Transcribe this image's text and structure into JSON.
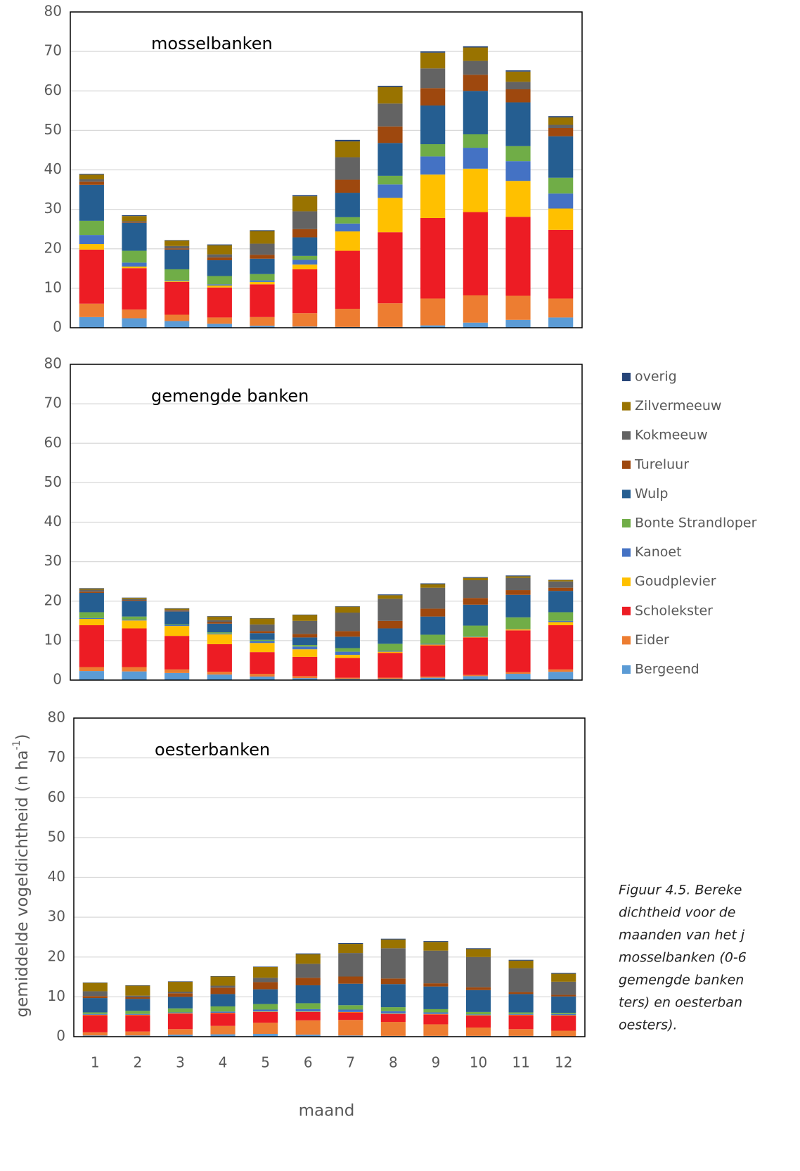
{
  "chart_data": [
    {
      "type": "bar",
      "stacked": true,
      "title": "mosselbanken",
      "ylim": [
        0,
        80
      ],
      "yticks": [
        0,
        10,
        20,
        30,
        40,
        50,
        60,
        70,
        80
      ],
      "grid": true,
      "series": [
        {
          "name": "Bergeend",
          "color": "#5b9bd5",
          "values": [
            2.7,
            2.4,
            1.7,
            1.0,
            0.5,
            0.3,
            0.2,
            0.2,
            0.6,
            1.3,
            2.0,
            2.6
          ]
        },
        {
          "name": "Eider",
          "color": "#ed7d31",
          "values": [
            3.4,
            2.2,
            1.6,
            1.6,
            2.2,
            3.4,
            4.6,
            6.0,
            6.8,
            6.9,
            6.1,
            4.8
          ]
        },
        {
          "name": "Scholekster",
          "color": "#ed1c24",
          "values": [
            13.7,
            10.5,
            8.3,
            7.6,
            8.3,
            11.1,
            14.7,
            18.0,
            20.4,
            21.1,
            20.0,
            17.4
          ]
        },
        {
          "name": "Goudplevier",
          "color": "#ffc000",
          "values": [
            1.4,
            0.4,
            0.2,
            0.5,
            0.6,
            1.2,
            4.9,
            8.7,
            11.0,
            11.0,
            9.1,
            5.4
          ]
        },
        {
          "name": "Kanoet",
          "color": "#4472c4",
          "values": [
            2.3,
            1.0,
            0.2,
            0.3,
            0.4,
            1.2,
            2.0,
            3.4,
            4.6,
            5.3,
            5.0,
            3.8
          ]
        },
        {
          "name": "Bonte Strandloper",
          "color": "#70ad47",
          "values": [
            3.6,
            3.0,
            2.8,
            2.1,
            1.6,
            1.0,
            1.6,
            2.2,
            3.1,
            3.4,
            3.8,
            4.0
          ]
        },
        {
          "name": "Wulp",
          "color": "#255e91",
          "values": [
            9.1,
            7.1,
            5.0,
            4.0,
            3.9,
            4.7,
            6.2,
            8.3,
            9.8,
            11.0,
            11.1,
            10.5
          ]
        },
        {
          "name": "Tureluur",
          "color": "#9e480e",
          "values": [
            0.8,
            0.2,
            0.3,
            0.7,
            1.0,
            2.1,
            3.3,
            4.2,
            4.4,
            4.1,
            3.3,
            2.1
          ]
        },
        {
          "name": "Kokmeeuw",
          "color": "#636363",
          "values": [
            0.6,
            0.2,
            0.6,
            0.8,
            2.8,
            4.5,
            5.7,
            5.8,
            5.0,
            3.5,
            1.9,
            0.8
          ]
        },
        {
          "name": "Zilvermeeuw",
          "color": "#997300",
          "values": [
            1.2,
            1.3,
            1.4,
            2.3,
            3.2,
            3.8,
            4.0,
            4.2,
            4.0,
            3.4,
            2.6,
            1.9
          ]
        },
        {
          "name": "overig",
          "color": "#264478",
          "values": [
            0.2,
            0.2,
            0.1,
            0.2,
            0.2,
            0.3,
            0.4,
            0.3,
            0.3,
            0.3,
            0.3,
            0.3
          ]
        }
      ]
    },
    {
      "type": "bar",
      "stacked": true,
      "title": "gemengde banken",
      "ylim": [
        0,
        80
      ],
      "yticks": [
        0,
        10,
        20,
        30,
        40,
        50,
        60,
        70,
        80
      ],
      "grid": true,
      "series": [
        {
          "name": "Bergeend",
          "color": "#5b9bd5",
          "values": [
            2.3,
            2.2,
            1.8,
            1.4,
            0.9,
            0.5,
            0.3,
            0.3,
            0.6,
            1.0,
            1.6,
            2.1
          ]
        },
        {
          "name": "Eider",
          "color": "#ed7d31",
          "values": [
            1.0,
            1.1,
            0.9,
            0.7,
            0.7,
            0.5,
            0.3,
            0.3,
            0.3,
            0.3,
            0.4,
            0.6
          ]
        },
        {
          "name": "Scholekster",
          "color": "#ed1c24",
          "values": [
            10.6,
            9.8,
            8.5,
            7.0,
            5.5,
            4.9,
            5.0,
            6.3,
            7.9,
            9.5,
            10.6,
            11.2
          ]
        },
        {
          "name": "Goudplevier",
          "color": "#ffc000",
          "values": [
            1.6,
            2.0,
            2.5,
            2.5,
            2.3,
            1.9,
            0.8,
            0.3,
            0.2,
            0.1,
            0.3,
            0.8
          ]
        },
        {
          "name": "Kanoet",
          "color": "#4472c4",
          "values": [
            0.2,
            0.2,
            0.2,
            0.2,
            0.5,
            0.7,
            0.8,
            0.2,
            0.2,
            0.1,
            0.1,
            0.3
          ]
        },
        {
          "name": "Bonte Strandloper",
          "color": "#70ad47",
          "values": [
            1.5,
            0.8,
            0.2,
            0.3,
            0.3,
            0.4,
            0.9,
            1.8,
            2.3,
            2.8,
            2.9,
            2.2
          ]
        },
        {
          "name": "Wulp",
          "color": "#255e91",
          "values": [
            4.9,
            4.0,
            3.3,
            2.2,
            1.7,
            1.9,
            2.9,
            3.9,
            4.6,
            5.3,
            5.7,
            5.4
          ]
        },
        {
          "name": "Tureluur",
          "color": "#9e480e",
          "values": [
            0.3,
            0.2,
            0.2,
            0.4,
            0.5,
            0.9,
            1.4,
            1.9,
            2.0,
            1.7,
            1.2,
            0.8
          ]
        },
        {
          "name": "Kokmeeuw",
          "color": "#636363",
          "values": [
            0.5,
            0.2,
            0.2,
            0.5,
            1.7,
            3.3,
            4.7,
            5.6,
            5.3,
            4.5,
            3.1,
            1.6
          ]
        },
        {
          "name": "Zilvermeeuw",
          "color": "#997300",
          "values": [
            0.3,
            0.3,
            0.3,
            0.9,
            1.5,
            1.5,
            1.5,
            0.9,
            0.9,
            0.6,
            0.4,
            0.3
          ]
        },
        {
          "name": "overig",
          "color": "#264478",
          "values": [
            0.1,
            0.1,
            0.1,
            0.1,
            0.1,
            0.1,
            0.1,
            0.2,
            0.2,
            0.2,
            0.2,
            0.1
          ]
        }
      ]
    },
    {
      "type": "bar",
      "stacked": true,
      "title": "oesterbanken",
      "ylim": [
        0,
        80
      ],
      "yticks": [
        0,
        10,
        20,
        30,
        40,
        50,
        60,
        70,
        80
      ],
      "grid": true,
      "categories": [
        "1",
        "2",
        "3",
        "4",
        "5",
        "6",
        "7",
        "8",
        "9",
        "10",
        "11",
        "12"
      ],
      "xlabel": "maand",
      "ylabel": [
        "gemiddelde vogeldichtheid (n ha",
        "-1",
        ")"
      ],
      "series": [
        {
          "name": "Bergeend",
          "color": "#5b9bd5",
          "values": [
            0.3,
            0.3,
            0.5,
            0.6,
            0.7,
            0.5,
            0.3,
            0.2,
            0.2,
            0.2,
            0.2,
            0.1
          ]
        },
        {
          "name": "Eider",
          "color": "#ed7d31",
          "values": [
            0.8,
            1.0,
            1.4,
            2.1,
            2.8,
            3.6,
            3.9,
            3.5,
            2.9,
            2.1,
            1.7,
            1.4
          ]
        },
        {
          "name": "Scholekster",
          "color": "#ed1c24",
          "values": [
            4.3,
            4.1,
            3.9,
            3.2,
            2.7,
            2.1,
            1.9,
            2.0,
            2.5,
            3.0,
            3.5,
            3.8
          ]
        },
        {
          "name": "Goudplevier",
          "color": "#ffc000",
          "values": [
            0.1,
            0.1,
            0.1,
            0.1,
            0.1,
            0.1,
            0.1,
            0.1,
            0.1,
            0.1,
            0.1,
            0.1
          ]
        },
        {
          "name": "Kanoet",
          "color": "#4472c4",
          "values": [
            0.2,
            0.2,
            0.2,
            0.3,
            0.5,
            0.6,
            0.6,
            0.6,
            0.4,
            0.2,
            0.2,
            0.3
          ]
        },
        {
          "name": "Bonte Strandloper",
          "color": "#70ad47",
          "values": [
            0.4,
            0.8,
            1.0,
            1.3,
            1.4,
            1.5,
            1.1,
            1.0,
            0.8,
            0.6,
            0.4,
            0.3
          ]
        },
        {
          "name": "Wulp",
          "color": "#255e91",
          "values": [
            3.6,
            3.0,
            2.9,
            3.1,
            3.7,
            4.5,
            5.4,
            5.8,
            5.7,
            5.5,
            4.6,
            4.1
          ]
        },
        {
          "name": "Tureluur",
          "color": "#9e480e",
          "values": [
            0.5,
            0.4,
            0.9,
            1.6,
            1.8,
            1.9,
            1.8,
            1.4,
            0.8,
            0.7,
            0.5,
            0.4
          ]
        },
        {
          "name": "Kokmeeuw",
          "color": "#636363",
          "values": [
            1.2,
            0.4,
            0.4,
            0.5,
            1.1,
            3.5,
            5.9,
            7.6,
            8.2,
            7.6,
            6.0,
            3.3
          ]
        },
        {
          "name": "Zilvermeeuw",
          "color": "#997300",
          "values": [
            2.1,
            2.5,
            2.5,
            2.3,
            2.7,
            2.4,
            2.3,
            2.2,
            2.2,
            2.0,
            1.9,
            2.0
          ]
        },
        {
          "name": "overig",
          "color": "#264478",
          "values": [
            0.1,
            0.1,
            0.1,
            0.1,
            0.1,
            0.2,
            0.2,
            0.2,
            0.2,
            0.2,
            0.2,
            0.2
          ]
        }
      ]
    }
  ],
  "caption": [
    "Figuur 4.5. Bereke",
    "dichtheid voor de",
    "maanden van het j",
    "mosselbanken (0-6",
    "gemengde banken",
    "ters) en oesterban",
    "oesters)."
  ]
}
